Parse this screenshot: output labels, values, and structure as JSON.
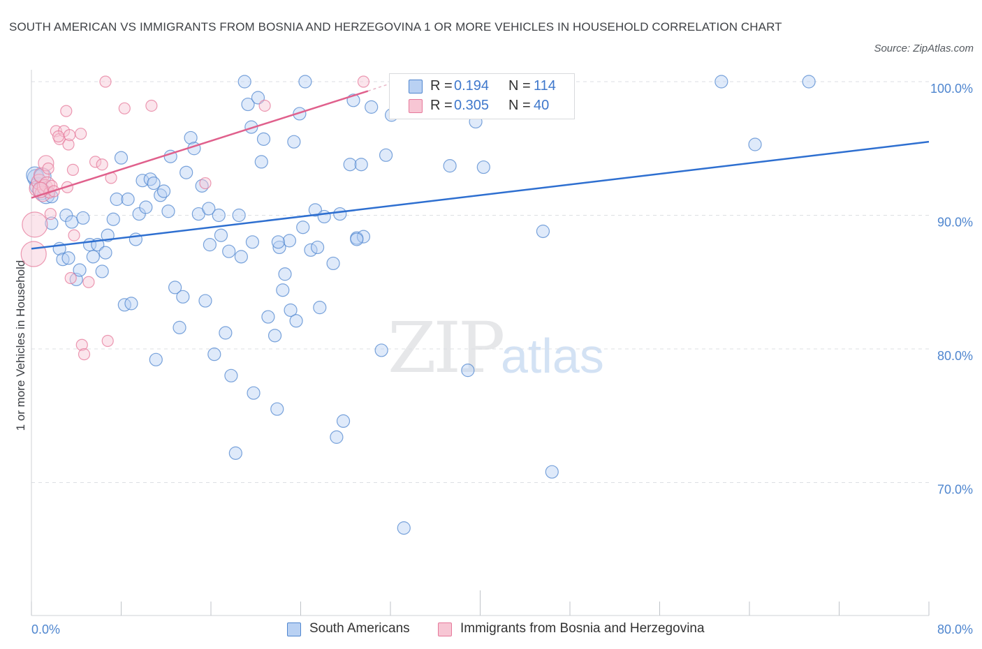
{
  "title": "SOUTH AMERICAN VS IMMIGRANTS FROM BOSNIA AND HERZEGOVINA 1 OR MORE VEHICLES IN HOUSEHOLD CORRELATION CHART",
  "source": "Source: ZipAtlas.com",
  "watermark": {
    "zip": "ZIP",
    "atlas": "atlas"
  },
  "colors": {
    "blue": "#4f86cf",
    "blue_fill": "#b9d1f3",
    "blue_line": "#2e6fd0",
    "pink": "#e6789a",
    "pink_fill": "#f7c6d4",
    "pink_line": "#e0608c"
  },
  "legend": {
    "rows": [
      {
        "r_label": "R =",
        "r_value": "0.194",
        "n_label": "N =",
        "n_value": "114"
      },
      {
        "r_label": "R =",
        "r_value": "0.305",
        "n_label": "N =",
        "n_value": "40"
      }
    ],
    "bottom": [
      "South Americans",
      "Immigrants from Bosnia and Herzegovina"
    ]
  },
  "chart_data": {
    "type": "scatter",
    "ylabel": "1 or more Vehicles in Household",
    "xlim": [
      0,
      80
    ],
    "ylim": [
      60,
      100
    ],
    "y_ticks": [
      {
        "value": 100,
        "label": "100.0%"
      },
      {
        "value": 90,
        "label": "90.0%"
      },
      {
        "value": 80,
        "label": "80.0%"
      },
      {
        "value": 70,
        "label": "70.0%"
      }
    ],
    "x_tick_labels": [
      {
        "value": 0,
        "label": "0.0%"
      },
      {
        "value": 80,
        "label": "80.0%"
      }
    ],
    "x_minor_ticks": [
      0,
      8,
      16,
      24,
      32,
      40,
      48,
      56,
      64,
      72,
      80
    ],
    "series": [
      {
        "name": "South Americans",
        "trend": {
          "x": [
            0,
            80
          ],
          "y": [
            87.5,
            95.5
          ]
        },
        "points": [
          [
            0.4,
            92.8
          ],
          [
            0.6,
            92.2
          ],
          [
            0.9,
            91.8
          ],
          [
            1.3,
            91.5
          ],
          [
            1.8,
            91.4
          ],
          [
            0.3,
            93.0
          ],
          [
            1.0,
            92.9
          ],
          [
            1.8,
            89.4
          ],
          [
            2.5,
            87.5
          ],
          [
            2.8,
            86.7
          ],
          [
            3.1,
            90.0
          ],
          [
            3.3,
            86.8
          ],
          [
            3.6,
            89.5
          ],
          [
            4.0,
            85.2
          ],
          [
            4.3,
            85.9
          ],
          [
            4.6,
            89.8
          ],
          [
            5.2,
            87.8
          ],
          [
            5.5,
            86.9
          ],
          [
            5.9,
            87.8
          ],
          [
            6.3,
            85.8
          ],
          [
            6.6,
            87.2
          ],
          [
            6.8,
            88.5
          ],
          [
            7.3,
            89.7
          ],
          [
            7.6,
            91.2
          ],
          [
            8.0,
            94.3
          ],
          [
            8.3,
            83.3
          ],
          [
            8.6,
            91.2
          ],
          [
            8.9,
            83.4
          ],
          [
            9.3,
            88.2
          ],
          [
            9.6,
            90.1
          ],
          [
            9.9,
            92.6
          ],
          [
            10.2,
            90.6
          ],
          [
            10.6,
            92.7
          ],
          [
            10.9,
            92.4
          ],
          [
            11.1,
            79.2
          ],
          [
            11.5,
            91.5
          ],
          [
            11.8,
            91.8
          ],
          [
            12.2,
            90.3
          ],
          [
            12.4,
            94.4
          ],
          [
            12.8,
            84.6
          ],
          [
            13.2,
            81.6
          ],
          [
            13.5,
            83.9
          ],
          [
            13.8,
            93.2
          ],
          [
            14.2,
            95.8
          ],
          [
            14.5,
            95.0
          ],
          [
            14.9,
            90.1
          ],
          [
            15.2,
            92.2
          ],
          [
            15.5,
            83.6
          ],
          [
            15.8,
            90.5
          ],
          [
            15.9,
            87.8
          ],
          [
            16.3,
            79.6
          ],
          [
            16.7,
            90.0
          ],
          [
            16.9,
            88.5
          ],
          [
            17.3,
            81.2
          ],
          [
            17.6,
            87.3
          ],
          [
            17.8,
            78.0
          ],
          [
            18.2,
            72.2
          ],
          [
            18.5,
            90.0
          ],
          [
            18.7,
            86.9
          ],
          [
            19.0,
            100.0
          ],
          [
            19.3,
            98.3
          ],
          [
            19.6,
            96.6
          ],
          [
            19.8,
            76.7
          ],
          [
            20.2,
            98.8
          ],
          [
            20.5,
            94.0
          ],
          [
            20.7,
            95.7
          ],
          [
            21.1,
            82.4
          ],
          [
            21.7,
            81.0
          ],
          [
            21.9,
            75.5
          ],
          [
            22.1,
            87.6
          ],
          [
            22.4,
            84.4
          ],
          [
            22.6,
            85.6
          ],
          [
            23.1,
            82.9
          ],
          [
            23.4,
            95.5
          ],
          [
            23.6,
            82.1
          ],
          [
            23.9,
            97.6
          ],
          [
            24.2,
            89.1
          ],
          [
            24.4,
            100.0
          ],
          [
            24.9,
            87.4
          ],
          [
            25.3,
            90.4
          ],
          [
            25.5,
            87.6
          ],
          [
            25.7,
            83.1
          ],
          [
            26.1,
            89.9
          ],
          [
            26.9,
            86.4
          ],
          [
            27.2,
            73.4
          ],
          [
            27.5,
            90.1
          ],
          [
            27.8,
            74.6
          ],
          [
            28.4,
            93.8
          ],
          [
            28.7,
            98.6
          ],
          [
            29.0,
            88.3
          ],
          [
            29.4,
            93.8
          ],
          [
            29.6,
            88.4
          ],
          [
            30.3,
            98.1
          ],
          [
            31.2,
            79.9
          ],
          [
            31.6,
            94.5
          ],
          [
            32.1,
            97.5
          ],
          [
            32.8,
            100.0
          ],
          [
            33.2,
            66.6
          ],
          [
            35.3,
            100.0
          ],
          [
            37.3,
            93.7
          ],
          [
            38.4,
            100.0
          ],
          [
            38.9,
            78.4
          ],
          [
            39.6,
            97.0
          ],
          [
            40.3,
            93.6
          ],
          [
            40.8,
            98.5
          ],
          [
            45.6,
            88.8
          ],
          [
            46.4,
            70.8
          ],
          [
            61.5,
            100.0
          ],
          [
            64.5,
            95.3
          ],
          [
            69.3,
            100.0
          ],
          [
            29.0,
            88.2
          ],
          [
            19.7,
            88.0
          ],
          [
            23.0,
            88.1
          ],
          [
            22.0,
            88.0
          ]
        ]
      },
      {
        "name": "Immigrants from Bosnia and Herzegovina",
        "trend": {
          "x": [
            0,
            30
          ],
          "y": [
            91.3,
            99.3
          ]
        },
        "points": [
          [
            0.2,
            87.1
          ],
          [
            0.3,
            89.3
          ],
          [
            0.5,
            92.0
          ],
          [
            0.7,
            92.5
          ],
          [
            0.9,
            93.0
          ],
          [
            1.0,
            91.6
          ],
          [
            1.2,
            92.1
          ],
          [
            1.3,
            93.9
          ],
          [
            1.4,
            92.3
          ],
          [
            1.5,
            93.5
          ],
          [
            1.6,
            91.7
          ],
          [
            1.8,
            92.2
          ],
          [
            2.0,
            91.8
          ],
          [
            2.2,
            96.3
          ],
          [
            2.5,
            95.7
          ],
          [
            2.9,
            96.3
          ],
          [
            3.2,
            92.1
          ],
          [
            3.3,
            95.3
          ],
          [
            3.4,
            96.0
          ],
          [
            3.5,
            85.3
          ],
          [
            3.7,
            93.4
          ],
          [
            3.8,
            88.5
          ],
          [
            4.4,
            96.1
          ],
          [
            4.5,
            80.3
          ],
          [
            4.7,
            79.6
          ],
          [
            5.1,
            85.0
          ],
          [
            5.7,
            94.0
          ],
          [
            6.3,
            93.8
          ],
          [
            6.6,
            100.0
          ],
          [
            6.8,
            80.6
          ],
          [
            7.1,
            92.8
          ],
          [
            8.3,
            98.0
          ],
          [
            10.7,
            98.2
          ],
          [
            15.5,
            92.4
          ],
          [
            20.8,
            98.2
          ],
          [
            29.6,
            100.0
          ],
          [
            1.7,
            90.1
          ],
          [
            2.4,
            95.9
          ],
          [
            0.8,
            91.9
          ],
          [
            3.1,
            97.8
          ]
        ]
      }
    ]
  }
}
